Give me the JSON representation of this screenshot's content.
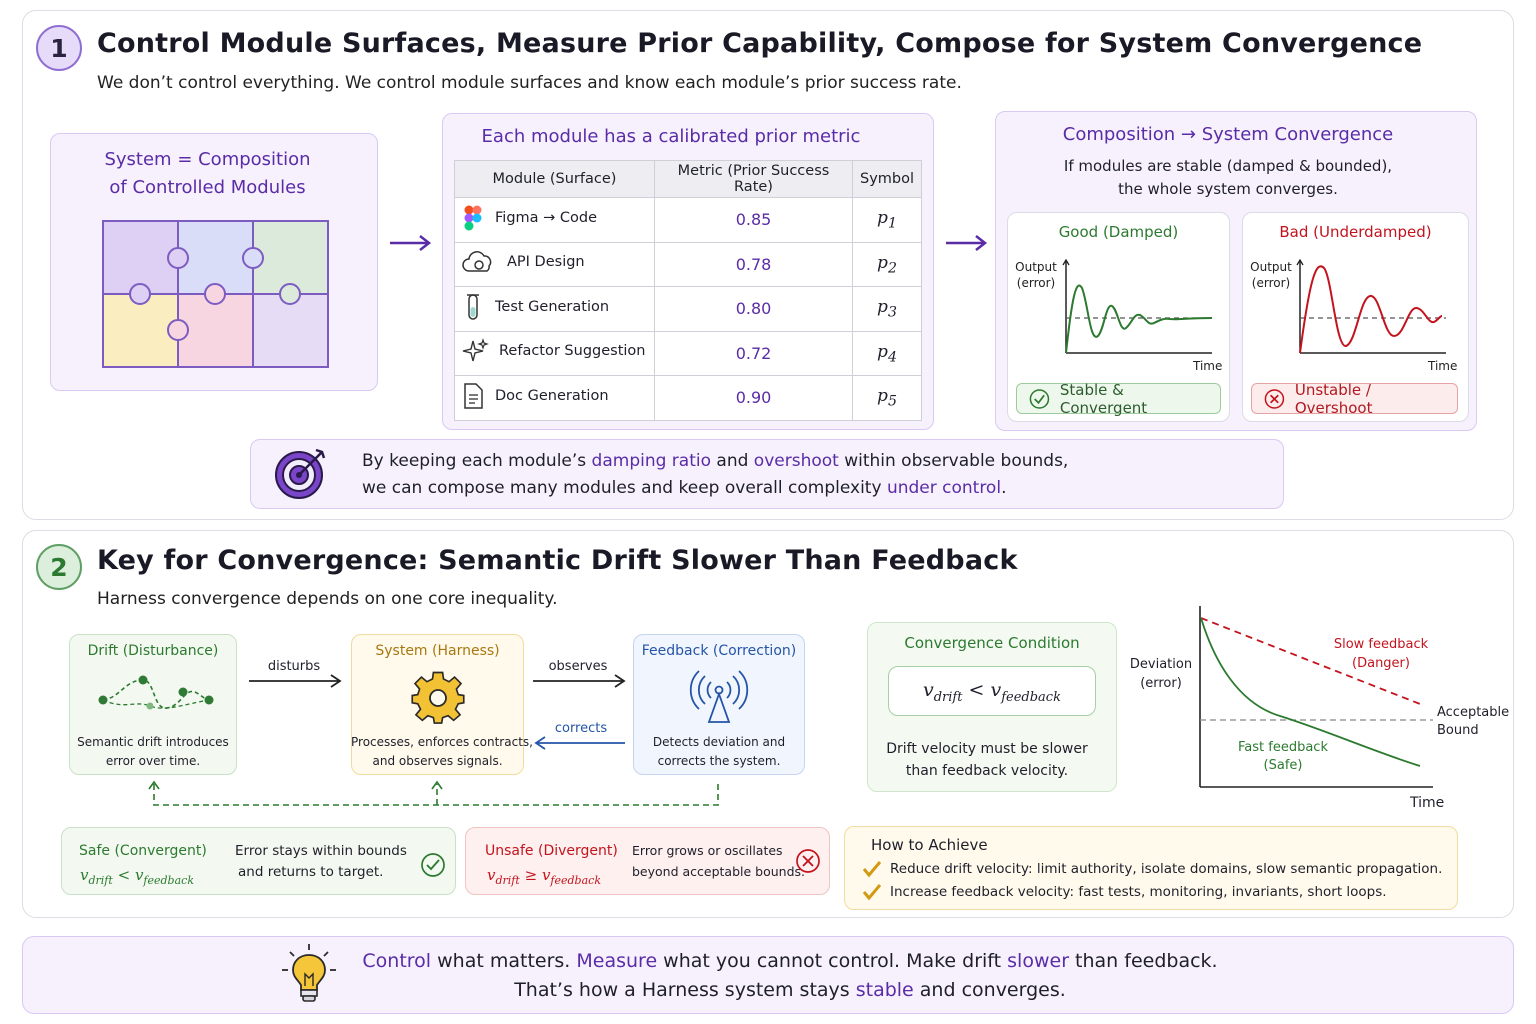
{
  "section1": {
    "number": "1",
    "title": "Control Module Surfaces, Measure Prior Capability, Compose for System Convergence",
    "subtitle": "We don’t control everything. We control module surfaces and know each module’s prior success rate.",
    "system_box": {
      "line1": "System = Composition",
      "line2": "of Controlled Modules"
    },
    "metric_table": {
      "title": "Each module has a calibrated prior metric",
      "headers": [
        "Module (Surface)",
        "Metric (Prior Success Rate)",
        "Symbol"
      ],
      "rows": [
        {
          "icon": "figma-icon",
          "module": "Figma → Code",
          "metric": "0.85",
          "symbol": "p",
          "sub": "1"
        },
        {
          "icon": "cloud-gear-icon",
          "module": "API Design",
          "metric": "0.78",
          "symbol": "p",
          "sub": "2"
        },
        {
          "icon": "test-tube-icon",
          "module": "Test Generation",
          "metric": "0.80",
          "symbol": "p",
          "sub": "3"
        },
        {
          "icon": "sparkles-icon",
          "module": "Refactor Suggestion",
          "metric": "0.72",
          "symbol": "p",
          "sub": "4"
        },
        {
          "icon": "document-icon",
          "module": "Doc Generation",
          "metric": "0.90",
          "symbol": "p",
          "sub": "5"
        }
      ]
    },
    "composition": {
      "title": "Composition → System Convergence",
      "desc1": "If modules are stable (damped & bounded),",
      "desc2": "the whole system converges.",
      "good": {
        "title": "Good (Damped)",
        "ylabel1": "Output",
        "ylabel2": "(error)",
        "xlabel": "Time",
        "chip": "Stable & Convergent"
      },
      "bad": {
        "title": "Bad (Underdamped)",
        "ylabel1": "Output",
        "ylabel2": "(error)",
        "xlabel": "Time",
        "chip": "Unstable / Overshoot"
      }
    },
    "callout": {
      "l1a": "By keeping each module’s ",
      "l1b": "damping ratio",
      "l1c": " and ",
      "l1d": "overshoot",
      "l1e": " within observable bounds,",
      "l2a": "we can compose many modules and keep overall complexity ",
      "l2b": "under control",
      "l2c": "."
    }
  },
  "section2": {
    "number": "2",
    "title": "Key for Convergence: Semantic Drift Slower Than Feedback",
    "subtitle": "Harness convergence depends on one core inequality.",
    "drift": {
      "title": "Drift (Disturbance)",
      "desc1": "Semantic drift introduces",
      "desc2": "error over time."
    },
    "system": {
      "title": "System (Harness)",
      "desc1": "Processes, enforces contracts,",
      "desc2": "and observes signals."
    },
    "feedback": {
      "title": "Feedback (Correction)",
      "desc1": "Detects deviation and",
      "desc2": "corrects the system."
    },
    "arrows": {
      "disturbs": "disturbs",
      "observes": "observes",
      "corrects": "corrects"
    },
    "condition": {
      "title": "Convergence Condition",
      "formula_v": "v",
      "formula_drift": "drift",
      "formula_op": "<",
      "formula_fb": "feedback",
      "desc1": "Drift velocity must be slower",
      "desc2": "than feedback velocity."
    },
    "chart": {
      "ylabel1": "Deviation",
      "ylabel2": "(error)",
      "xlabel": "Time",
      "slow1": "Slow feedback",
      "slow2": "(Danger)",
      "fast1": "Fast feedback",
      "fast2": "(Safe)",
      "bound1": "Acceptable",
      "bound2": "Bound"
    },
    "safe": {
      "title": "Safe (Convergent)",
      "op": "<",
      "desc1": "Error stays within bounds",
      "desc2": "and returns to target."
    },
    "unsafe": {
      "title": "Unsafe (Divergent)",
      "op": "≥",
      "desc1": "Error grows or oscillates",
      "desc2": "beyond acceptable bounds."
    },
    "achieve": {
      "title": "How to Achieve",
      "items": [
        "Reduce drift velocity: limit authority, isolate domains, slow semantic propagation.",
        "Increase feedback velocity: fast tests, monitoring, invariants, short loops."
      ]
    }
  },
  "footer": {
    "l1a": "Control",
    "l1b": " what matters. ",
    "l1c": "Measure",
    "l1d": " what you cannot control. Make drift ",
    "l1e": "slower",
    "l1f": " than feedback.",
    "l2a": "That’s how a Harness system stays ",
    "l2b": "stable",
    "l2c": " and converges."
  },
  "colors": {
    "accent": "#5a2ca6",
    "good": "#2c7a2f",
    "bad": "#c3141e",
    "blue": "#2455a8"
  }
}
